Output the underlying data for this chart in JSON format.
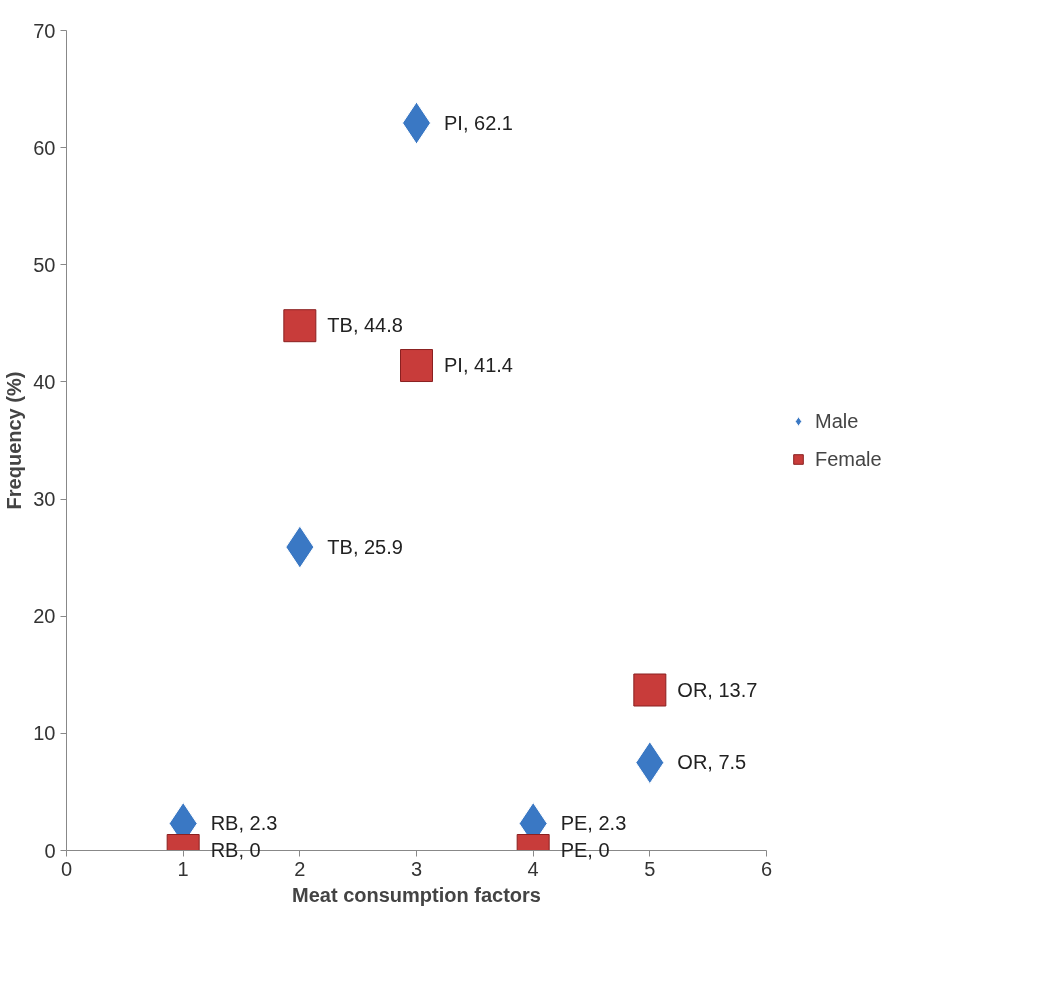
{
  "chart_data": {
    "type": "scatter",
    "xlabel": "Meat consumption factors",
    "ylabel": "Frequency (%)",
    "xlim": [
      0,
      6
    ],
    "xticks": [
      0,
      1,
      2,
      3,
      4,
      5,
      6
    ],
    "ylim": [
      0,
      70
    ],
    "yticks": [
      0,
      10,
      20,
      30,
      40,
      50,
      60,
      70
    ],
    "grid": false,
    "legend": "right",
    "series": [
      {
        "name": "Male",
        "color": "#3a78c4",
        "marker": "diamond",
        "x": [
          1,
          2,
          3,
          4,
          5
        ],
        "values": [
          2.3,
          25.9,
          62.1,
          2.3,
          7.5
        ],
        "value_labels": [
          "RB, 2.3",
          "TB, 25.9",
          "PI, 62.1",
          "PE, 2.3",
          "OR, 7.5"
        ]
      },
      {
        "name": "Female",
        "color": "#c83c3a",
        "marker": "square",
        "x": [
          1,
          2,
          3,
          4,
          5
        ],
        "values": [
          0,
          44.8,
          41.4,
          0,
          13.7
        ],
        "value_labels": [
          "RB, 0",
          "TB, 44.8",
          "PI, 41.4",
          "PE, 0",
          "OR, 13.7"
        ]
      }
    ]
  }
}
